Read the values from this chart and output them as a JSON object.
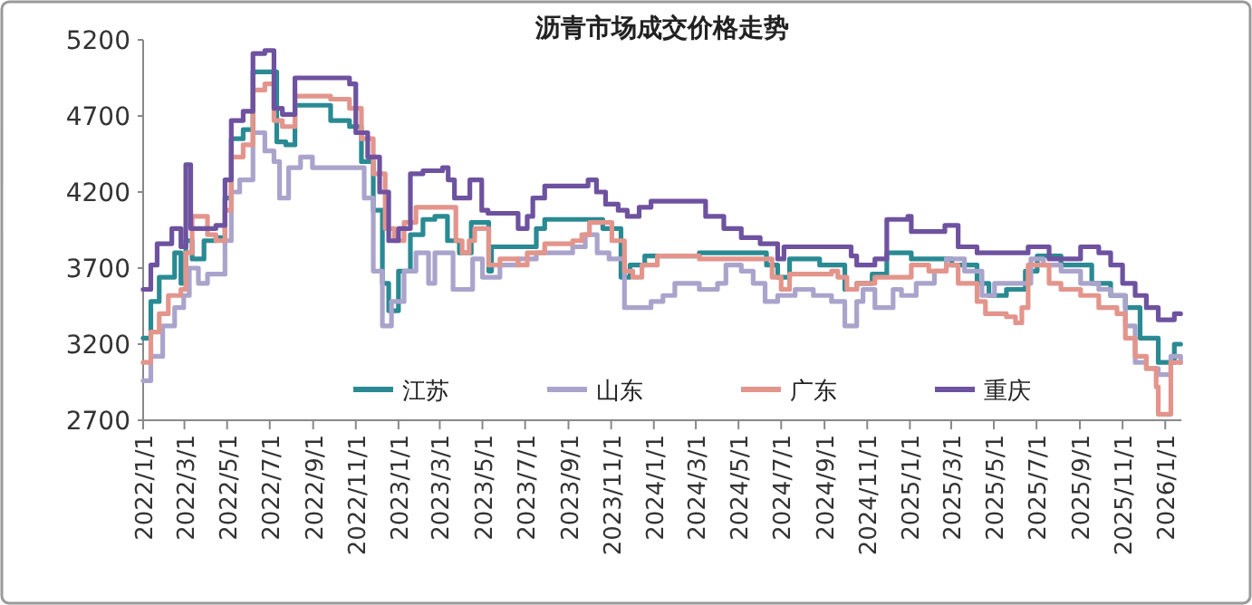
{
  "chart_data": {
    "type": "step",
    "title": "沥青市场成交价格走势",
    "xlim": [
      "2022-01-01",
      "2026-01-24"
    ],
    "ylim": [
      2700,
      5200
    ],
    "yticks": [
      2700,
      3200,
      3700,
      4200,
      4700,
      5200
    ],
    "xticks": [
      {
        "value": "2022-01-01",
        "label": "2022/1/1"
      },
      {
        "value": "2022-03-01",
        "label": "2022/3/1"
      },
      {
        "value": "2022-05-01",
        "label": "2022/5/1"
      },
      {
        "value": "2022-07-01",
        "label": "2022/7/1"
      },
      {
        "value": "2022-09-01",
        "label": "2022/9/1"
      },
      {
        "value": "2022-11-01",
        "label": "2022/11/1"
      },
      {
        "value": "2023-01-01",
        "label": "2023/1/1"
      },
      {
        "value": "2023-03-01",
        "label": "2023/3/1"
      },
      {
        "value": "2023-05-01",
        "label": "2023/5/1"
      },
      {
        "value": "2023-07-01",
        "label": "2023/7/1"
      },
      {
        "value": "2023-09-01",
        "label": "2023/9/1"
      },
      {
        "value": "2023-11-01",
        "label": "2023/11/1"
      },
      {
        "value": "2024-01-01",
        "label": "2024/1/1"
      },
      {
        "value": "2024-03-01",
        "label": "2024/3/1"
      },
      {
        "value": "2024-05-01",
        "label": "2024/5/1"
      },
      {
        "value": "2024-07-01",
        "label": "2024/7/1"
      },
      {
        "value": "2024-09-01",
        "label": "2024/9/1"
      },
      {
        "value": "2024-11-01",
        "label": "2024/11/1"
      },
      {
        "value": "2025-01-01",
        "label": "2025/1/1"
      },
      {
        "value": "2025-03-01",
        "label": "2025/3/1"
      },
      {
        "value": "2025-05-01",
        "label": "2025/5/1"
      },
      {
        "value": "2025-07-01",
        "label": "2025/7/1"
      },
      {
        "value": "2025-09-01",
        "label": "2025/9/1"
      },
      {
        "value": "2025-11-01",
        "label": "2025/11/1"
      },
      {
        "value": "2026-01-01",
        "label": "2026/1/1"
      }
    ],
    "legend": "bottom",
    "series": [
      {
        "name": "江苏",
        "color": "#2a8a93",
        "x": [
          "2022-01-01",
          "2022-01-12",
          "2022-01-24",
          "2022-02-15",
          "2022-02-24",
          "2022-03-03",
          "2022-03-12",
          "2022-03-29",
          "2022-04-15",
          "2022-04-28",
          "2022-05-07",
          "2022-05-24",
          "2022-06-07",
          "2022-07-02",
          "2022-07-11",
          "2022-07-24",
          "2022-08-06",
          "2022-09-18",
          "2022-09-26",
          "2022-10-23",
          "2022-11-09",
          "2022-11-26",
          "2022-12-09",
          "2022-12-18",
          "2023-01-01",
          "2023-01-18",
          "2023-02-05",
          "2023-02-22",
          "2023-03-12",
          "2023-03-29",
          "2023-04-12",
          "2023-04-15",
          "2023-05-01",
          "2023-05-10",
          "2023-05-14",
          "2023-06-21",
          "2023-07-17",
          "2023-07-29",
          "2023-10-01",
          "2023-10-20",
          "2023-11-15",
          "2023-11-28",
          "2023-12-19",
          "2024-03-06",
          "2024-06-01",
          "2024-06-10",
          "2024-06-26",
          "2024-07-13",
          "2024-08-25",
          "2024-09-13",
          "2024-09-30",
          "2024-10-17",
          "2024-11-08",
          "2024-11-29",
          "2025-01-03",
          "2025-03-02",
          "2025-04-07",
          "2025-04-24",
          "2025-05-19",
          "2025-06-15",
          "2025-07-02",
          "2025-08-05",
          "2025-09-10",
          "2025-09-18",
          "2025-10-15",
          "2025-11-05",
          "2025-11-26",
          "2025-12-22",
          "2026-01-04",
          "2026-01-14",
          "2026-01-23"
        ],
        "values": [
          3240,
          3480,
          3640,
          3800,
          3600,
          3880,
          3760,
          3880,
          3900,
          4160,
          4550,
          4610,
          4990,
          4990,
          4530,
          4510,
          4770,
          4770,
          4670,
          4630,
          4400,
          4080,
          3600,
          3420,
          3680,
          3920,
          4020,
          4040,
          3880,
          3800,
          3800,
          4000,
          4000,
          3680,
          3840,
          3840,
          3960,
          4020,
          4020,
          3960,
          3640,
          3720,
          3780,
          3800,
          3800,
          3720,
          3640,
          3760,
          3720,
          3720,
          3560,
          3600,
          3660,
          3800,
          3760,
          3720,
          3600,
          3520,
          3560,
          3680,
          3780,
          3720,
          3720,
          3600,
          3520,
          3440,
          3240,
          3080,
          3080,
          3200,
          3200
        ]
      },
      {
        "name": "山东",
        "color": "#aaa4cc",
        "x": [
          "2022-01-01",
          "2022-01-12",
          "2022-01-29",
          "2022-02-15",
          "2022-02-28",
          "2022-03-08",
          "2022-03-21",
          "2022-04-03",
          "2022-04-15",
          "2022-04-28",
          "2022-05-07",
          "2022-05-19",
          "2022-06-07",
          "2022-06-24",
          "2022-07-07",
          "2022-07-15",
          "2022-07-28",
          "2022-08-14",
          "2022-08-31",
          "2022-11-01",
          "2022-11-13",
          "2022-11-26",
          "2022-12-09",
          "2022-12-22",
          "2023-01-09",
          "2023-01-26",
          "2023-02-13",
          "2023-02-22",
          "2023-03-12",
          "2023-03-20",
          "2023-04-04",
          "2023-04-17",
          "2023-05-01",
          "2023-05-26",
          "2023-06-21",
          "2023-07-17",
          "2023-09-07",
          "2023-09-25",
          "2023-10-12",
          "2023-10-29",
          "2023-11-20",
          "2023-12-11",
          "2023-12-28",
          "2024-01-14",
          "2024-01-31",
          "2024-03-06",
          "2024-04-01",
          "2024-04-13",
          "2024-05-05",
          "2024-05-22",
          "2024-06-08",
          "2024-06-26",
          "2024-07-21",
          "2024-08-16",
          "2024-09-11",
          "2024-09-30",
          "2024-10-17",
          "2024-10-26",
          "2024-11-12",
          "2024-12-08",
          "2024-12-20",
          "2025-01-10",
          "2025-02-05",
          "2025-02-22",
          "2025-03-20",
          "2025-04-14",
          "2025-05-02",
          "2025-05-28",
          "2025-06-23",
          "2025-07-11",
          "2025-08-05",
          "2025-09-02",
          "2025-09-28",
          "2025-10-15",
          "2025-11-05",
          "2025-11-19",
          "2025-12-05",
          "2025-12-22",
          "2026-01-09",
          "2026-01-23"
        ],
        "values": [
          2960,
          3120,
          3320,
          3440,
          3520,
          3700,
          3600,
          3660,
          3660,
          3880,
          4200,
          4280,
          4590,
          4470,
          4400,
          4160,
          4360,
          4430,
          4360,
          4360,
          4160,
          3680,
          3320,
          3480,
          3680,
          3800,
          3600,
          3800,
          3800,
          3560,
          3560,
          3760,
          3640,
          3720,
          3760,
          3800,
          3840,
          3920,
          3800,
          3760,
          3440,
          3440,
          3480,
          3520,
          3600,
          3560,
          3600,
          3720,
          3680,
          3600,
          3480,
          3520,
          3560,
          3520,
          3480,
          3320,
          3480,
          3560,
          3440,
          3560,
          3520,
          3600,
          3680,
          3760,
          3680,
          3520,
          3600,
          3600,
          3760,
          3720,
          3680,
          3600,
          3560,
          3520,
          3320,
          3080,
          3040,
          3000,
          3120,
          3080
        ]
      },
      {
        "name": "广东",
        "color": "#e3958c",
        "x": [
          "2022-01-01",
          "2022-01-12",
          "2022-01-24",
          "2022-02-06",
          "2022-02-24",
          "2022-03-03",
          "2022-03-12",
          "2022-03-24",
          "2022-04-03",
          "2022-04-15",
          "2022-04-28",
          "2022-05-07",
          "2022-05-24",
          "2022-06-07",
          "2022-06-24",
          "2022-07-07",
          "2022-07-19",
          "2022-08-06",
          "2022-09-18",
          "2022-09-26",
          "2022-10-23",
          "2022-11-09",
          "2022-11-26",
          "2022-12-13",
          "2022-12-26",
          "2023-01-09",
          "2023-01-26",
          "2023-03-20",
          "2023-03-24",
          "2023-04-02",
          "2023-04-12",
          "2023-04-20",
          "2023-05-01",
          "2023-05-10",
          "2023-05-26",
          "2023-06-21",
          "2023-07-04",
          "2023-07-29",
          "2023-09-07",
          "2023-09-20",
          "2023-10-01",
          "2023-10-20",
          "2023-11-02",
          "2023-11-20",
          "2023-12-02",
          "2023-12-15",
          "2024-01-06",
          "2024-03-06",
          "2024-06-01",
          "2024-06-18",
          "2024-07-01",
          "2024-07-13",
          "2024-09-11",
          "2024-09-20",
          "2024-10-03",
          "2024-10-17",
          "2024-11-12",
          "2024-12-16",
          "2025-01-03",
          "2025-01-28",
          "2025-02-22",
          "2025-03-11",
          "2025-04-07",
          "2025-04-19",
          "2025-05-19",
          "2025-06-01",
          "2025-06-10",
          "2025-06-19",
          "2025-07-02",
          "2025-07-19",
          "2025-08-05",
          "2025-09-02",
          "2025-09-28",
          "2025-10-24",
          "2025-11-05",
          "2025-11-19",
          "2025-12-05",
          "2025-12-19",
          "2025-12-22",
          "2026-01-04",
          "2026-01-09",
          "2026-01-23"
        ],
        "values": [
          3080,
          3280,
          3400,
          3520,
          3560,
          3800,
          4040,
          4040,
          3920,
          3880,
          4080,
          4430,
          4510,
          4870,
          4910,
          4670,
          4630,
          4830,
          4830,
          4810,
          4750,
          4550,
          4320,
          3960,
          3880,
          4000,
          4100,
          4100,
          3880,
          3800,
          3880,
          3960,
          3960,
          3720,
          3760,
          3720,
          3800,
          3860,
          3880,
          3920,
          4000,
          4000,
          3880,
          3680,
          3640,
          3720,
          3780,
          3760,
          3760,
          3640,
          3560,
          3660,
          3680,
          3640,
          3560,
          3600,
          3640,
          3640,
          3720,
          3680,
          3720,
          3600,
          3480,
          3400,
          3380,
          3340,
          3440,
          3720,
          3720,
          3600,
          3560,
          3520,
          3440,
          3400,
          3240,
          3120,
          3040,
          2920,
          2740,
          2740,
          3080,
          3080
        ]
      },
      {
        "name": "重庆",
        "color": "#6e52a0",
        "x": [
          "2022-01-01",
          "2022-01-12",
          "2022-01-21",
          "2022-02-11",
          "2022-02-24",
          "2022-03-03",
          "2022-03-10",
          "2022-04-15",
          "2022-04-28",
          "2022-05-07",
          "2022-05-24",
          "2022-06-07",
          "2022-06-24",
          "2022-07-07",
          "2022-07-19",
          "2022-08-06",
          "2022-09-23",
          "2022-10-23",
          "2022-11-01",
          "2022-11-18",
          "2022-12-05",
          "2022-12-18",
          "2023-01-01",
          "2023-01-18",
          "2023-02-05",
          "2023-03-05",
          "2023-03-13",
          "2023-03-22",
          "2023-04-04",
          "2023-04-13",
          "2023-04-26",
          "2023-04-30",
          "2023-05-09",
          "2023-06-12",
          "2023-06-21",
          "2023-07-04",
          "2023-07-12",
          "2023-07-29",
          "2023-09-16",
          "2023-09-29",
          "2023-10-11",
          "2023-10-24",
          "2023-11-11",
          "2023-11-24",
          "2023-12-11",
          "2023-12-28",
          "2024-03-06",
          "2024-03-15",
          "2024-04-10",
          "2024-05-05",
          "2024-06-01",
          "2024-06-26",
          "2024-07-05",
          "2024-10-09",
          "2024-10-17",
          "2024-11-12",
          "2024-11-29",
          "2024-12-29",
          "2025-01-03",
          "2025-02-16",
          "2025-02-20",
          "2025-03-07",
          "2025-03-11",
          "2025-04-07",
          "2025-06-15",
          "2025-06-19",
          "2025-07-11",
          "2025-07-19",
          "2025-09-02",
          "2025-09-28",
          "2025-10-15",
          "2025-11-01",
          "2025-11-19",
          "2025-12-05",
          "2025-12-22",
          "2026-01-14",
          "2026-01-23"
        ],
        "values": [
          3560,
          3720,
          3860,
          3960,
          3840,
          4380,
          3960,
          3980,
          4280,
          4670,
          4730,
          5110,
          5130,
          4750,
          4710,
          4950,
          4950,
          4910,
          4590,
          4430,
          4200,
          3880,
          3960,
          4320,
          4340,
          4360,
          4280,
          4160,
          4160,
          4280,
          4280,
          4080,
          4060,
          4060,
          3960,
          4040,
          4160,
          4240,
          4240,
          4280,
          4200,
          4120,
          4080,
          4040,
          4100,
          4140,
          4140,
          4040,
          3960,
          3900,
          3860,
          3760,
          3840,
          3780,
          3720,
          3760,
          4020,
          4040,
          3940,
          3940,
          3980,
          3980,
          3840,
          3800,
          3800,
          3840,
          3840,
          3760,
          3840,
          3800,
          3720,
          3600,
          3520,
          3440,
          3360,
          3400,
          3400
        ]
      }
    ]
  }
}
